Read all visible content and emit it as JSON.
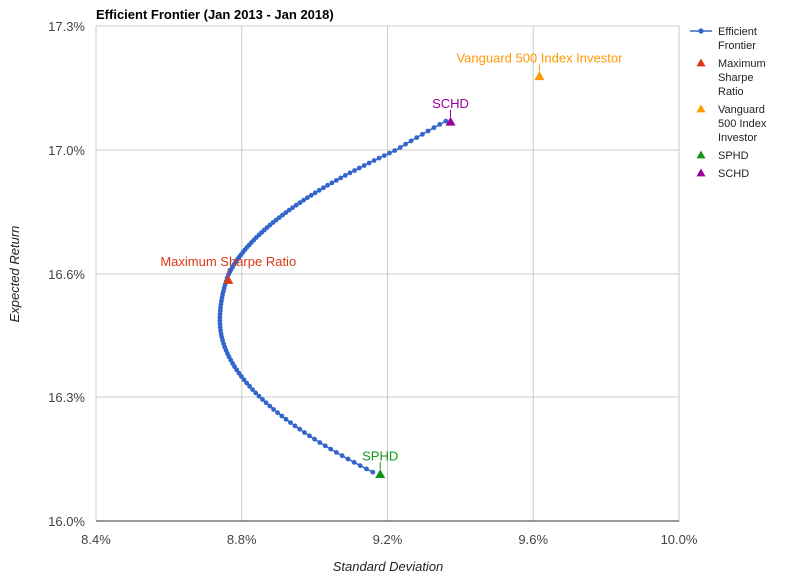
{
  "chart_data": {
    "type": "scatter",
    "title": "Efficient Frontier (Jan 2013 - Jan 2018)",
    "xlabel": "Standard Deviation",
    "ylabel": "Expected Return",
    "xlim": [
      8.4,
      10.0
    ],
    "ylim": [
      16.0,
      17.3
    ],
    "x_ticks": [
      8.4,
      8.8,
      9.2,
      9.6,
      10.0
    ],
    "x_tick_labels": [
      "8.4%",
      "8.8%",
      "9.2%",
      "9.6%",
      "10.0%"
    ],
    "y_ticks": [
      16.0,
      16.3,
      16.6,
      17.0,
      17.3
    ],
    "y_tick_labels": [
      "16.0%",
      "16.3%",
      "16.6%",
      "17.0%",
      "17.3%"
    ],
    "grid": true,
    "legend_position": "right",
    "frontier": {
      "name": "Efficient Frontier",
      "color": "#3366cc",
      "x_min": 8.74,
      "y_at_min": 16.487,
      "y_start": 16.118,
      "y_end": 17.07,
      "x_at_start": 9.16,
      "x_at_end": 9.36,
      "point_count": 120
    },
    "points": [
      {
        "name": "Maximum Sharpe Ratio",
        "legend": "Maximum Sharpe Ratio",
        "x": 8.763,
        "y": 16.585,
        "color": "#dc3912",
        "label": "Maximum Sharpe Ratio"
      },
      {
        "name": "Vanguard 500 Index Investor",
        "legend": "Vanguard 500 Index Investor",
        "x": 9.617,
        "y": 17.178,
        "color": "#ff9900",
        "label": "Vanguard 500 Index Investor"
      },
      {
        "name": "SPHD",
        "legend": "SPHD",
        "x": 9.18,
        "y": 16.113,
        "color": "#109618",
        "label": "SPHD"
      },
      {
        "name": "SCHD",
        "legend": "SCHD",
        "x": 9.373,
        "y": 17.068,
        "color": "#990099",
        "label": "SCHD"
      }
    ]
  }
}
